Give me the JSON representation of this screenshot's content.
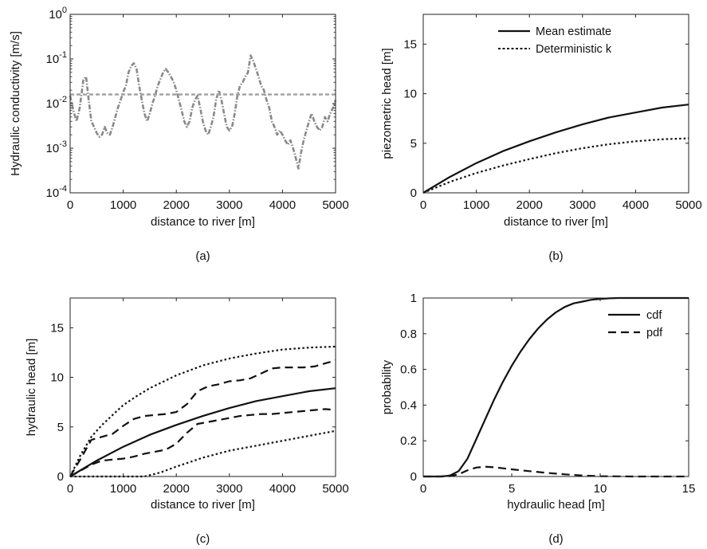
{
  "chart_data": [
    {
      "panel": "(a)",
      "type": "line",
      "caption": "(a)",
      "xlabel": "distance to river [m]",
      "ylabel": "Hydraulic conductivity [m/s]",
      "xlim": [
        0,
        5000
      ],
      "ylim": [
        0.0001,
        1
      ],
      "yscale": "log",
      "xticks": [
        0,
        1000,
        2000,
        3000,
        4000,
        5000
      ],
      "xtick_labels": [
        "0",
        "1000",
        "2000",
        "3000",
        "4000",
        "5000"
      ],
      "yticks": [
        0.0001,
        0.001,
        0.01,
        0.1,
        1
      ],
      "ytick_labels": [
        [
          "10",
          "-4"
        ],
        [
          "10",
          "-3"
        ],
        [
          "10",
          "-2"
        ],
        [
          "10",
          "-1"
        ],
        [
          "10",
          "0"
        ]
      ],
      "grid": false,
      "colors": {
        "random_field": "#8a8a8a",
        "deterministic": "#a0a0a0"
      },
      "series": [
        {
          "style": "dash-dot",
          "x": [
            0,
            60,
            120,
            180,
            250,
            300,
            350,
            400,
            450,
            500,
            550,
            600,
            650,
            700,
            750,
            800,
            850,
            900,
            950,
            1000,
            1050,
            1100,
            1150,
            1200,
            1250,
            1300,
            1350,
            1400,
            1450,
            1500,
            1550,
            1600,
            1650,
            1700,
            1750,
            1800,
            1850,
            1900,
            1950,
            2000,
            2050,
            2100,
            2150,
            2200,
            2250,
            2300,
            2350,
            2400,
            2450,
            2500,
            2550,
            2600,
            2650,
            2700,
            2750,
            2800,
            2850,
            2900,
            2950,
            3000,
            3050,
            3100,
            3150,
            3200,
            3250,
            3300,
            3350,
            3400,
            3450,
            3500,
            3550,
            3600,
            3650,
            3700,
            3750,
            3800,
            3850,
            3900,
            3950,
            4000,
            4050,
            4100,
            4150,
            4200,
            4250,
            4300,
            4350,
            4400,
            4450,
            4500,
            4550,
            4600,
            4650,
            4700,
            4750,
            4800,
            4850,
            4900,
            4950,
            5000
          ],
          "y": [
            0.015,
            0.007,
            0.004,
            0.008,
            0.035,
            0.04,
            0.012,
            0.004,
            0.003,
            0.0022,
            0.0018,
            0.002,
            0.003,
            0.0022,
            0.002,
            0.003,
            0.005,
            0.008,
            0.012,
            0.018,
            0.025,
            0.05,
            0.07,
            0.08,
            0.06,
            0.025,
            0.012,
            0.006,
            0.004,
            0.006,
            0.01,
            0.015,
            0.025,
            0.035,
            0.05,
            0.06,
            0.05,
            0.04,
            0.03,
            0.02,
            0.012,
            0.007,
            0.004,
            0.003,
            0.004,
            0.008,
            0.012,
            0.015,
            0.008,
            0.004,
            0.0025,
            0.002,
            0.003,
            0.005,
            0.012,
            0.02,
            0.012,
            0.006,
            0.003,
            0.0025,
            0.003,
            0.006,
            0.015,
            0.025,
            0.03,
            0.04,
            0.05,
            0.12,
            0.09,
            0.06,
            0.04,
            0.025,
            0.02,
            0.012,
            0.008,
            0.004,
            0.003,
            0.002,
            0.0025,
            0.002,
            0.0015,
            0.0012,
            0.0015,
            0.001,
            0.0006,
            0.00035,
            0.0008,
            0.0015,
            0.0025,
            0.004,
            0.006,
            0.004,
            0.003,
            0.0025,
            0.003,
            0.005,
            0.004,
            0.006,
            0.008,
            0.012
          ]
        },
        {
          "style": "dashed",
          "x": [
            0,
            5000
          ],
          "y": [
            0.016,
            0.016
          ]
        }
      ]
    },
    {
      "panel": "(b)",
      "type": "line",
      "caption": "(b)",
      "xlabel": "distance to river [m]",
      "ylabel": "piezometric head [m]",
      "xlim": [
        0,
        5000
      ],
      "ylim": [
        0,
        18
      ],
      "xticks": [
        0,
        1000,
        2000,
        3000,
        4000,
        5000
      ],
      "xtick_labels": [
        "0",
        "1000",
        "2000",
        "3000",
        "4000",
        "5000"
      ],
      "yticks": [
        0,
        5,
        10,
        15
      ],
      "ytick_labels": [
        "0",
        "5",
        "10",
        "15"
      ],
      "grid": false,
      "legend_position": "top-right",
      "series": [
        {
          "name": "Mean estimate",
          "style": "solid",
          "x": [
            0,
            500,
            1000,
            1500,
            2000,
            2500,
            3000,
            3500,
            4000,
            4500,
            5000
          ],
          "y": [
            0,
            1.6,
            3.0,
            4.2,
            5.2,
            6.1,
            6.9,
            7.6,
            8.1,
            8.6,
            8.9
          ]
        },
        {
          "name": "Deterministic k",
          "style": "dotted",
          "x": [
            0,
            500,
            1000,
            1500,
            2000,
            2500,
            3000,
            3500,
            4000,
            4500,
            5000
          ],
          "y": [
            0,
            1.1,
            2.0,
            2.75,
            3.4,
            4.0,
            4.5,
            4.9,
            5.2,
            5.4,
            5.5
          ]
        }
      ]
    },
    {
      "panel": "(c)",
      "type": "line",
      "caption": "(c)",
      "xlabel": "distance to river [m]",
      "ylabel": "hydraulic head [m]",
      "xlim": [
        0,
        5000
      ],
      "ylim": [
        0,
        18
      ],
      "xticks": [
        0,
        1000,
        2000,
        3000,
        4000,
        5000
      ],
      "xtick_labels": [
        "0",
        "1000",
        "2000",
        "3000",
        "4000",
        "5000"
      ],
      "yticks": [
        0,
        5,
        10,
        15
      ],
      "ytick_labels": [
        "0",
        "5",
        "10",
        "15"
      ],
      "grid": false,
      "series": [
        {
          "style": "solid",
          "x": [
            0,
            500,
            1000,
            1500,
            2000,
            2500,
            3000,
            3500,
            4000,
            4500,
            5000
          ],
          "y": [
            0,
            1.6,
            3.0,
            4.2,
            5.2,
            6.1,
            6.9,
            7.6,
            8.1,
            8.6,
            8.9
          ]
        },
        {
          "style": "dashed",
          "x": [
            0,
            200,
            400,
            600,
            800,
            1000,
            1200,
            1400,
            1600,
            1800,
            2000,
            2200,
            2400,
            2600,
            2800,
            3000,
            3200,
            3400,
            3600,
            3800,
            4000,
            4200,
            4400,
            4600,
            4800,
            5000
          ],
          "y": [
            0,
            1.8,
            3.7,
            4.0,
            4.3,
            5.1,
            5.8,
            6.1,
            6.2,
            6.3,
            6.5,
            7.3,
            8.6,
            9.1,
            9.3,
            9.6,
            9.7,
            9.9,
            10.4,
            10.9,
            11.0,
            11.0,
            11.0,
            11.1,
            11.4,
            11.7
          ]
        },
        {
          "style": "dashed",
          "x": [
            0,
            200,
            400,
            600,
            800,
            1000,
            1200,
            1400,
            1600,
            1800,
            2000,
            2200,
            2400,
            2600,
            2800,
            3000,
            3200,
            3400,
            3600,
            3800,
            4000,
            4200,
            4400,
            4600,
            4800,
            5000
          ],
          "y": [
            0,
            0.6,
            1.2,
            1.6,
            1.7,
            1.8,
            2.0,
            2.3,
            2.5,
            2.7,
            3.3,
            4.4,
            5.3,
            5.5,
            5.7,
            5.9,
            6.1,
            6.2,
            6.3,
            6.3,
            6.4,
            6.5,
            6.6,
            6.7,
            6.8,
            6.7
          ]
        },
        {
          "style": "dotted",
          "x": [
            0,
            200,
            400,
            600,
            800,
            1000,
            1250,
            1500,
            2000,
            2500,
            3000,
            3500,
            4000,
            4500,
            5000
          ],
          "y": [
            0,
            2.2,
            4.0,
            5.2,
            6.2,
            7.2,
            8.1,
            8.9,
            10.2,
            11.2,
            11.9,
            12.4,
            12.8,
            13.0,
            13.1
          ]
        },
        {
          "style": "dotted",
          "x": [
            0,
            500,
            1000,
            1400,
            1700,
            2000,
            2500,
            3000,
            3500,
            4000,
            4500,
            5000
          ],
          "y": [
            0,
            0,
            0,
            0,
            0.4,
            1.0,
            1.9,
            2.6,
            3.1,
            3.6,
            4.1,
            4.6
          ]
        }
      ]
    },
    {
      "panel": "(d)",
      "type": "line",
      "caption": "(d)",
      "xlabel": "hydraulic head [m]",
      "ylabel": "probability",
      "xlim": [
        0,
        15
      ],
      "ylim": [
        0,
        1
      ],
      "xticks": [
        0,
        5,
        10,
        15
      ],
      "xtick_labels": [
        "0",
        "5",
        "10",
        "15"
      ],
      "yticks": [
        0,
        0.2,
        0.4,
        0.6,
        0.8,
        1
      ],
      "ytick_labels": [
        "0",
        "0.2",
        "0.4",
        "0.6",
        "0.8",
        "1"
      ],
      "grid": false,
      "legend_position": "top-right",
      "series": [
        {
          "name": "cdf",
          "style": "solid",
          "x": [
            0,
            1,
            1.5,
            2,
            2.5,
            3,
            3.5,
            4,
            4.5,
            5,
            5.5,
            6,
            6.5,
            7,
            7.5,
            8,
            8.5,
            9,
            9.5,
            10,
            10.5,
            11,
            12,
            13,
            14,
            15
          ],
          "y": [
            0,
            0,
            0.005,
            0.03,
            0.1,
            0.21,
            0.32,
            0.43,
            0.53,
            0.62,
            0.7,
            0.77,
            0.83,
            0.88,
            0.92,
            0.95,
            0.97,
            0.98,
            0.99,
            0.995,
            0.998,
            1,
            1,
            1,
            1,
            1
          ]
        },
        {
          "name": "pdf",
          "style": "dashed",
          "x": [
            0,
            1,
            1.5,
            2,
            2.5,
            3,
            3.5,
            4,
            4.5,
            5,
            6,
            7,
            8,
            9,
            10,
            11,
            12,
            13,
            14,
            15
          ],
          "y": [
            0,
            0,
            0.002,
            0.012,
            0.035,
            0.05,
            0.055,
            0.052,
            0.046,
            0.04,
            0.03,
            0.02,
            0.012,
            0.006,
            0.002,
            0.001,
            0,
            0,
            0,
            0
          ]
        }
      ]
    }
  ]
}
